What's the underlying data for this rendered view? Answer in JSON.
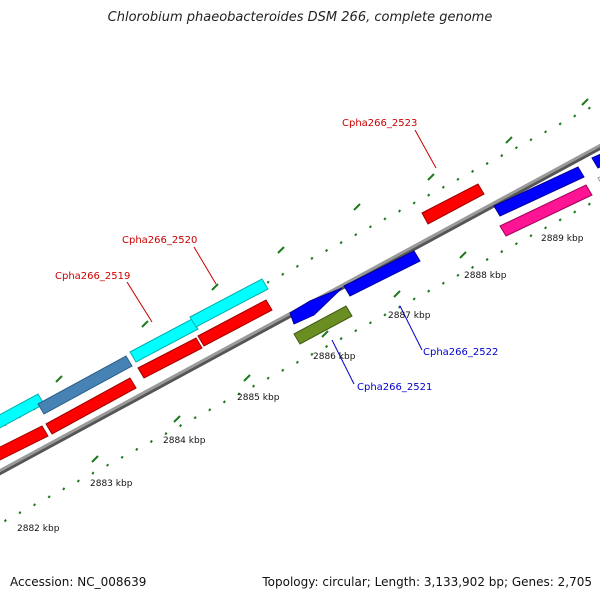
{
  "title": "Chlorobium phaeobacteroides DSM 266, complete genome",
  "footer": {
    "accession": "Accession: NC_008639",
    "summary": "Topology: circular; Length: 3,133,902 bp; Genes: 2,705"
  },
  "colors": {
    "backbone": "#8a8a8a",
    "tick": "#1f7a1f",
    "label_forward": "#cc0000",
    "label_reverse": "#0000cc",
    "cyan": "#00ffff",
    "steel": "#4682b4",
    "red": "#ff0000",
    "blue": "#0000ff",
    "olive": "#6b8e23",
    "pink": "#ff1493"
  },
  "ruler": {
    "labels": [
      "2882 kbp",
      "2883 kbp",
      "2884 kbp",
      "2885 kbp",
      "2886 kbp",
      "2887 kbp",
      "2888 kbp",
      "2889 kbp"
    ]
  },
  "gene_labels": [
    {
      "text": "Cpha266_2519",
      "strand": "forward"
    },
    {
      "text": "Cpha266_2520",
      "strand": "forward"
    },
    {
      "text": "Cpha266_2523",
      "strand": "forward"
    },
    {
      "text": "Cpha266_2521",
      "strand": "reverse"
    },
    {
      "text": "Cpha266_2522",
      "strand": "reverse"
    }
  ]
}
